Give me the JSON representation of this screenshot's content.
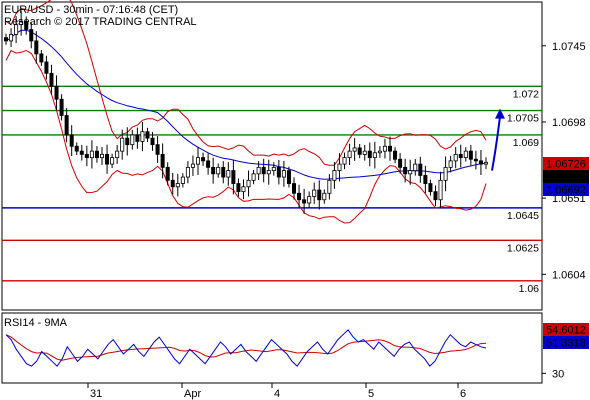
{
  "header": {
    "title": "EUR/USD - 30min - 07:16:48 (CET)",
    "copyright": "Research © 2017 TRADING CENTRAL"
  },
  "chart_data": [
    {
      "type": "candlestick",
      "symbol": "EUR/USD",
      "timeframe": "30min",
      "ylim": [
        1.0582,
        1.0772
      ],
      "x_ticks": [
        "31",
        "Apr",
        "4",
        "5",
        "6"
      ],
      "y_ticks": [
        1.0745,
        1.0698,
        1.0651,
        1.0604
      ],
      "levels": [
        {
          "label": "1.072",
          "value": 1.072,
          "color": "#008000"
        },
        {
          "label": "1.0705",
          "value": 1.0705,
          "color": "#008000"
        },
        {
          "label": "1.069",
          "value": 1.069,
          "color": "#008000"
        },
        {
          "label": "1.0645",
          "value": 1.0645,
          "color": "#0000cc"
        },
        {
          "label": "1.0625",
          "value": 1.0625,
          "color": "#cc0000"
        },
        {
          "label": "1.06",
          "value": 1.06,
          "color": "#cc0000"
        }
      ],
      "price_labels": [
        {
          "label": "1.06726",
          "value": 1.06726,
          "bg": "#cc0000",
          "fg": "#ffffff"
        },
        {
          "label": "1.06727",
          "value": 1.06727,
          "bg": "#000000",
          "fg": "#ffffff"
        },
        {
          "label": "1.06692",
          "value": 1.06692,
          "bg": "#0000cc",
          "fg": "#ffffff"
        }
      ],
      "close_series": [
        1.0748,
        1.0752,
        1.0758,
        1.076,
        1.0755,
        1.0748,
        1.074,
        1.0735,
        1.0728,
        1.072,
        1.0712,
        1.0702,
        1.069,
        1.0683,
        1.068,
        1.0678,
        1.0676,
        1.068,
        1.0676,
        1.0678,
        1.0672,
        1.0676,
        1.068,
        1.0688,
        1.0684,
        1.069,
        1.0686,
        1.0692,
        1.0688,
        1.0684,
        1.0678,
        1.067,
        1.0662,
        1.0658,
        1.066,
        1.0664,
        1.067,
        1.0672,
        1.0676,
        1.0674,
        1.067,
        1.0666,
        1.067,
        1.0664,
        1.0668,
        1.066,
        1.0655,
        1.0658,
        1.0662,
        1.0666,
        1.067,
        1.0666,
        1.0668,
        1.067,
        1.0664,
        1.0668,
        1.066,
        1.0654,
        1.065,
        1.0648,
        1.0652,
        1.0656,
        1.065,
        1.0654,
        1.0662,
        1.0668,
        1.0672,
        1.0676,
        1.068,
        1.0682,
        1.0678,
        1.068,
        1.0676,
        1.0679,
        1.068,
        1.0683,
        1.068,
        1.0675,
        1.067,
        1.0666,
        1.0668,
        1.0672,
        1.0665,
        1.066,
        1.0655,
        1.065,
        1.0662,
        1.067,
        1.0674,
        1.0678,
        1.0676,
        1.068,
        1.0675,
        1.0674,
        1.0672,
        1.0673
      ],
      "projection": {
        "from": 1.0668,
        "to": 1.0705,
        "color": "#0000cc"
      }
    },
    {
      "type": "line",
      "title": "RSI14 - 9MA",
      "ylim": [
        22,
        80
      ],
      "y_ticks": [
        30
      ],
      "series": [
        {
          "color": "#0000cc",
          "label": "51.3318",
          "last": 51.3318
        },
        {
          "color": "#cc0000",
          "label": "54.6012",
          "last": 54.6012
        }
      ],
      "rsi_series": [
        62,
        58,
        50,
        44,
        38,
        36,
        40,
        48,
        44,
        40,
        36,
        42,
        52,
        46,
        40,
        44,
        50,
        46,
        42,
        48,
        54,
        58,
        52,
        46,
        50,
        54,
        48,
        44,
        50,
        56,
        60,
        54,
        48,
        42,
        38,
        44,
        50,
        46,
        42,
        38,
        44,
        50,
        56,
        52,
        46,
        50,
        54,
        48,
        44,
        40,
        46,
        52,
        58,
        54,
        50,
        46,
        40,
        36,
        42,
        48,
        52,
        56,
        50,
        46,
        52,
        58,
        62,
        66,
        60,
        56,
        58,
        54,
        50,
        56,
        52,
        48,
        44,
        50,
        54,
        56,
        50,
        46,
        42,
        36,
        40,
        48,
        56,
        62,
        58,
        54,
        52,
        56,
        54,
        52,
        51
      ]
    }
  ]
}
